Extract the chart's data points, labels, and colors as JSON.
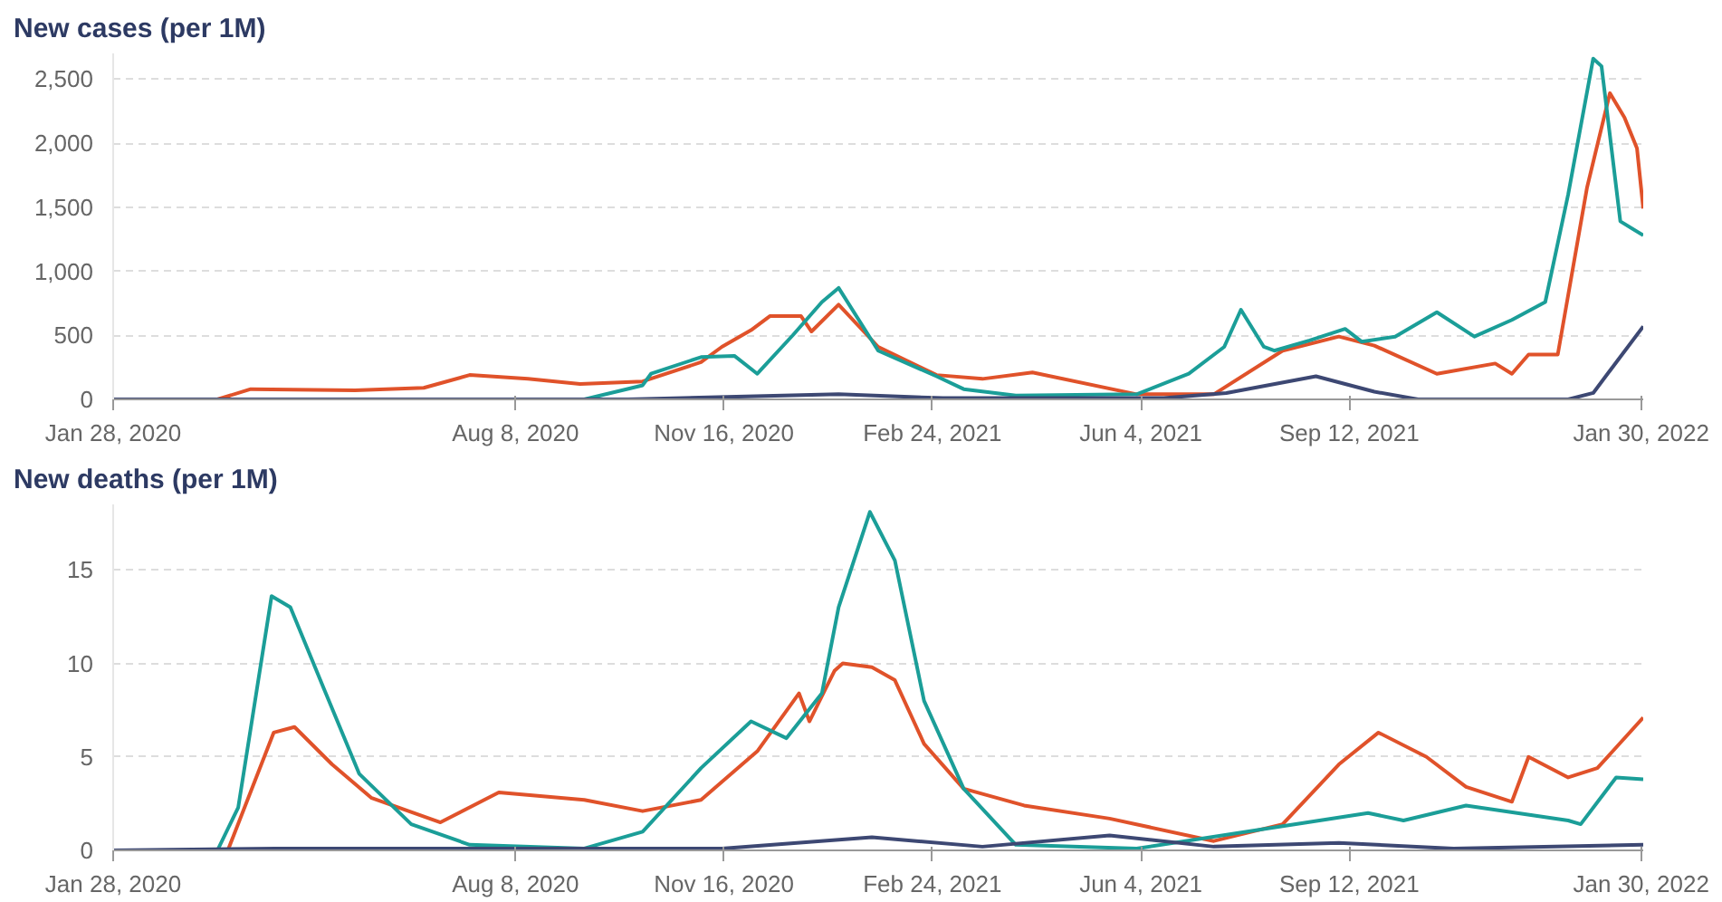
{
  "chart_data": [
    {
      "type": "line",
      "title": "New cases (per 1M)",
      "grid": "y",
      "marker": "none",
      "line_style": "solid",
      "xlim": [
        "2020-01-28",
        "2022-01-31"
      ],
      "xticks": [
        {
          "value": "2020-01-28",
          "label": "Jan 28, 2020"
        },
        {
          "value": "2020-08-08",
          "label": "Aug 8, 2020"
        },
        {
          "value": "2020-11-16",
          "label": "Nov 16, 2020"
        },
        {
          "value": "2021-02-24",
          "label": "Feb 24, 2021"
        },
        {
          "value": "2021-06-04",
          "label": "Jun 4, 2021"
        },
        {
          "value": "2021-09-12",
          "label": "Sep 12, 2021"
        },
        {
          "value": "2022-01-30",
          "label": "Jan 30, 2022"
        }
      ],
      "ylim": [
        0,
        2700
      ],
      "yticks": [
        0,
        500,
        {
          "value": 1000,
          "label": "1,000"
        },
        {
          "value": 1500,
          "label": "1,500"
        },
        {
          "value": 2000,
          "label": "2,000"
        },
        {
          "value": 2500,
          "label": "2,500"
        }
      ],
      "series": [
        {
          "color": "#e0522a",
          "x": [
            "2020-01-28",
            "2020-03-18",
            "2020-04-03",
            "2020-05-23",
            "2020-06-25",
            "2020-07-17",
            "2020-08-14",
            "2020-09-08",
            "2020-10-08",
            "2020-11-05",
            "2020-11-15",
            "2020-11-29",
            "2020-12-08",
            "2020-12-23",
            "2020-12-28",
            "2021-01-10",
            "2021-01-29",
            "2021-02-26",
            "2021-03-20",
            "2021-04-13",
            "2021-06-02",
            "2021-07-09",
            "2021-08-11",
            "2021-09-07",
            "2021-09-24",
            "2021-10-24",
            "2021-11-21",
            "2021-11-29",
            "2021-12-07",
            "2021-12-21",
            "2022-01-04",
            "2022-01-15",
            "2022-01-22",
            "2022-01-28",
            "2022-01-31"
          ],
          "values": [
            0,
            0,
            80,
            70,
            90,
            190,
            160,
            120,
            140,
            290,
            410,
            540,
            650,
            650,
            530,
            740,
            410,
            190,
            160,
            210,
            40,
            40,
            380,
            490,
            420,
            200,
            280,
            200,
            350,
            350,
            1650,
            2390,
            2200,
            1960,
            1490
          ]
        },
        {
          "color": "#1b9e98",
          "x": [
            "2020-01-28",
            "2020-08-01",
            "2020-09-10",
            "2020-10-08",
            "2020-10-12",
            "2020-11-05",
            "2020-11-21",
            "2020-12-02",
            "2020-12-19",
            "2021-01-02",
            "2021-01-10",
            "2021-01-29",
            "2021-02-26",
            "2021-03-11",
            "2021-04-05",
            "2021-06-02",
            "2021-06-27",
            "2021-07-14",
            "2021-07-22",
            "2021-08-02",
            "2021-08-07",
            "2021-08-24",
            "2021-09-10",
            "2021-09-18",
            "2021-10-04",
            "2021-10-24",
            "2021-11-11",
            "2021-11-29",
            "2021-12-15",
            "2021-12-26",
            "2022-01-07",
            "2022-01-11",
            "2022-01-20",
            "2022-01-31"
          ],
          "values": [
            0,
            0,
            0,
            110,
            200,
            330,
            340,
            200,
            500,
            760,
            870,
            380,
            180,
            80,
            30,
            40,
            200,
            410,
            700,
            410,
            380,
            460,
            550,
            450,
            490,
            680,
            490,
            620,
            760,
            1600,
            2660,
            2600,
            1390,
            1280
          ]
        },
        {
          "color": "#3d4873",
          "x": [
            "2020-01-28",
            "2020-10-01",
            "2021-01-10",
            "2021-03-01",
            "2021-06-15",
            "2021-07-15",
            "2021-08-27",
            "2021-09-24",
            "2021-10-15",
            "2021-12-26",
            "2022-01-07",
            "2022-01-31"
          ],
          "values": [
            0,
            0,
            40,
            10,
            10,
            50,
            180,
            60,
            0,
            0,
            50,
            570
          ]
        }
      ]
    },
    {
      "type": "line",
      "title": "New deaths (per 1M)",
      "grid": "y",
      "marker": "none",
      "line_style": "solid",
      "xlim": [
        "2020-01-28",
        "2022-01-31"
      ],
      "xticks": [
        {
          "value": "2020-01-28",
          "label": "Jan 28, 2020"
        },
        {
          "value": "2020-08-08",
          "label": "Aug 8, 2020"
        },
        {
          "value": "2020-11-16",
          "label": "Nov 16, 2020"
        },
        {
          "value": "2021-02-24",
          "label": "Feb 24, 2021"
        },
        {
          "value": "2021-06-04",
          "label": "Jun 4, 2021"
        },
        {
          "value": "2021-09-12",
          "label": "Sep 12, 2021"
        },
        {
          "value": "2022-01-30",
          "label": "Jan 30, 2022"
        }
      ],
      "ylim": [
        0,
        18.5
      ],
      "yticks": [
        0,
        5,
        10,
        15
      ],
      "series": [
        {
          "color": "#e0522a",
          "x": [
            "2020-01-28",
            "2020-03-23",
            "2020-04-14",
            "2020-04-24",
            "2020-05-12",
            "2020-05-31",
            "2020-07-03",
            "2020-07-31",
            "2020-09-10",
            "2020-10-08",
            "2020-11-05",
            "2020-12-02",
            "2020-12-22",
            "2020-12-27",
            "2021-01-08",
            "2021-01-12",
            "2021-01-26",
            "2021-02-06",
            "2021-02-20",
            "2021-03-11",
            "2021-04-09",
            "2021-05-20",
            "2021-07-09",
            "2021-08-11",
            "2021-09-07",
            "2021-09-26",
            "2021-10-19",
            "2021-11-07",
            "2021-11-29",
            "2021-12-07",
            "2021-12-26",
            "2022-01-09",
            "2022-01-31"
          ],
          "values": [
            0,
            0,
            6.3,
            6.6,
            4.6,
            2.8,
            1.5,
            3.1,
            2.7,
            2.1,
            2.7,
            5.3,
            8.4,
            6.9,
            9.6,
            10,
            9.8,
            9.1,
            5.7,
            3.3,
            2.4,
            1.7,
            0.5,
            1.4,
            4.6,
            6.3,
            5.0,
            3.4,
            2.6,
            5.0,
            3.9,
            4.4,
            7.1
          ]
        },
        {
          "color": "#1b9e98",
          "x": [
            "2020-01-28",
            "2020-03-18",
            "2020-03-28",
            "2020-04-13",
            "2020-04-22",
            "2020-05-09",
            "2020-05-25",
            "2020-06-19",
            "2020-07-17",
            "2020-09-10",
            "2020-10-08",
            "2020-11-05",
            "2020-11-29",
            "2020-12-16",
            "2021-01-02",
            "2021-01-10",
            "2021-01-25",
            "2021-02-06",
            "2021-02-20",
            "2021-03-11",
            "2021-04-05",
            "2021-06-02",
            "2021-08-11",
            "2021-09-21",
            "2021-10-08",
            "2021-11-07",
            "2021-12-26",
            "2022-01-01",
            "2022-01-18",
            "2022-01-31"
          ],
          "values": [
            0,
            0,
            2.3,
            13.6,
            13,
            8.4,
            4.1,
            1.4,
            0.3,
            0.1,
            1,
            4.4,
            6.9,
            6.0,
            8.4,
            13,
            18.1,
            15.5,
            8,
            3.3,
            0.3,
            0.1,
            1.3,
            2.0,
            1.6,
            2.4,
            1.6,
            1.4,
            3.9,
            3.8
          ]
        },
        {
          "color": "#3d4873",
          "x": [
            "2020-01-28",
            "2020-04-15",
            "2020-11-15",
            "2021-01-26",
            "2021-03-20",
            "2021-05-20",
            "2021-07-09",
            "2021-09-07",
            "2021-11-01",
            "2022-01-31"
          ],
          "values": [
            0,
            0.1,
            0.1,
            0.7,
            0.2,
            0.8,
            0.2,
            0.4,
            0.1,
            0.3
          ]
        }
      ]
    }
  ]
}
